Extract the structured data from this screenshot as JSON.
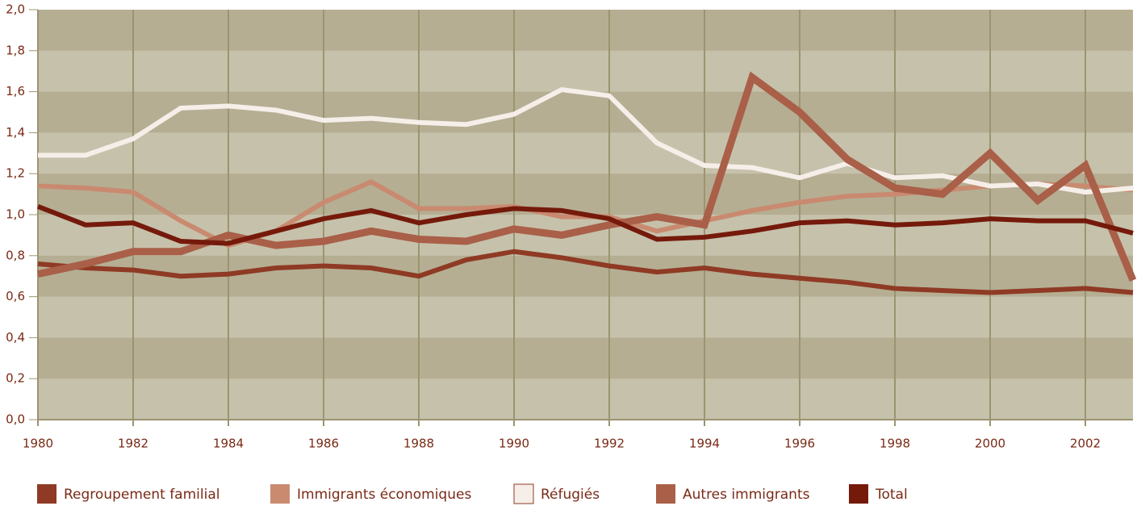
{
  "chart_data": {
    "type": "line",
    "x": [
      1980,
      1981,
      1982,
      1983,
      1984,
      1985,
      1986,
      1987,
      1988,
      1989,
      1990,
      1991,
      1992,
      1993,
      1994,
      1995,
      1996,
      1997,
      1998,
      1999,
      2000,
      2001,
      2002,
      2003
    ],
    "xlim": [
      1980,
      2003
    ],
    "xticks": [
      1980,
      1982,
      1984,
      1986,
      1988,
      1990,
      1992,
      1994,
      1996,
      1998,
      2000,
      2002
    ],
    "ylim": [
      0,
      2
    ],
    "yticks": [
      {
        "value": 0,
        "label": "0,0"
      },
      {
        "value": 0.2,
        "label": "0,2"
      },
      {
        "value": 0.4,
        "label": "0,4"
      },
      {
        "value": 0.6,
        "label": "0,6"
      },
      {
        "value": 0.8,
        "label": "0,8"
      },
      {
        "value": 1,
        "label": "1,0"
      },
      {
        "value": 1.2,
        "label": "1,2"
      },
      {
        "value": 1.4,
        "label": "1,4"
      },
      {
        "value": 1.6,
        "label": "1,6"
      },
      {
        "value": 1.8,
        "label": "1,8"
      },
      {
        "value": 2,
        "label": "2,0"
      }
    ],
    "grid": true,
    "legend": "bottom",
    "series": [
      {
        "name": "Regroupement familial",
        "color": "#8f3a24",
        "values": [
          0.76,
          0.74,
          0.73,
          0.7,
          0.71,
          0.74,
          0.75,
          0.74,
          0.7,
          0.78,
          0.82,
          0.79,
          0.75,
          0.72,
          0.74,
          0.71,
          0.69,
          0.67,
          0.64,
          0.63,
          0.62,
          0.63,
          0.64,
          0.62
        ]
      },
      {
        "name": "Immigrants économiques",
        "color": "#c98a70",
        "values": [
          1.14,
          1.13,
          1.11,
          0.97,
          0.85,
          0.92,
          1.06,
          1.16,
          1.03,
          1.03,
          1.04,
          0.99,
          0.99,
          0.92,
          0.97,
          1.02,
          1.06,
          1.09,
          1.1,
          1.12,
          1.14,
          1.15,
          1.14,
          1.12
        ]
      },
      {
        "name": "Réfugiés",
        "color": "#f6eee8",
        "values": [
          1.29,
          1.29,
          1.37,
          1.52,
          1.53,
          1.51,
          1.46,
          1.47,
          1.45,
          1.44,
          1.49,
          1.61,
          1.58,
          1.35,
          1.24,
          1.23,
          1.18,
          1.25,
          1.18,
          1.19,
          1.14,
          1.15,
          1.11,
          1.13
        ]
      },
      {
        "name": "Autres immigrants",
        "color": "#a95f48",
        "values": [
          0.71,
          0.76,
          0.82,
          0.82,
          0.9,
          0.85,
          0.87,
          0.92,
          0.88,
          0.87,
          0.93,
          0.9,
          0.95,
          0.99,
          0.95,
          1.67,
          1.5,
          1.27,
          1.13,
          1.1,
          1.3,
          1.07,
          1.24,
          0.68
        ]
      },
      {
        "name": "Total",
        "color": "#751a0b",
        "values": [
          1.04,
          0.95,
          0.96,
          0.87,
          0.86,
          0.92,
          0.98,
          1.02,
          0.96,
          1.0,
          1.03,
          1.02,
          0.98,
          0.88,
          0.89,
          0.92,
          0.96,
          0.97,
          0.95,
          0.96,
          0.98,
          0.97,
          0.97,
          0.91
        ]
      }
    ]
  }
}
